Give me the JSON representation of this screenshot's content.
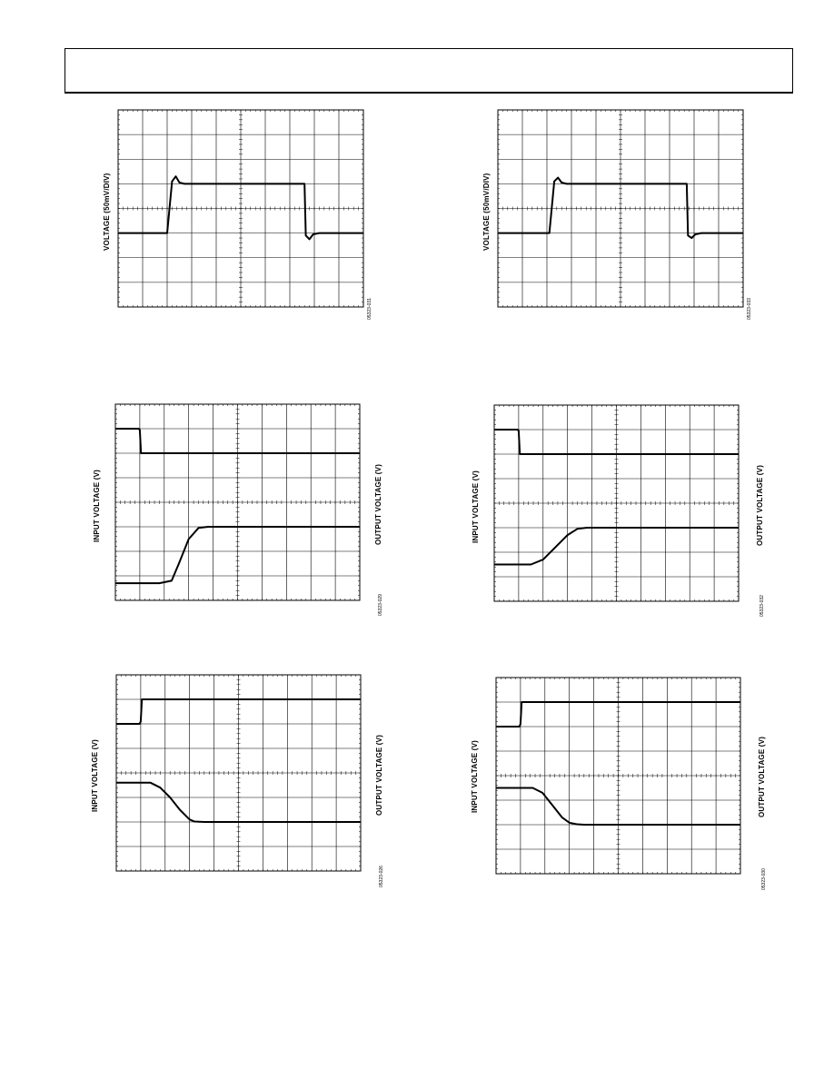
{
  "chart_data": [
    {
      "type": "line",
      "ylabel": "VOLTAGE (50mV/DIV)",
      "code": "05323-031",
      "x": [
        0,
        2.0,
        2.2,
        2.35,
        2.5,
        2.7,
        3.0,
        7.6,
        7.65,
        7.8,
        7.95,
        8.2,
        10
      ],
      "y": [
        -1,
        -1,
        1.1,
        1.3,
        1.05,
        1.0,
        1.0,
        1.0,
        -1.1,
        -1.25,
        -1.05,
        -1.0,
        -1.0
      ],
      "xlim": [
        0,
        10
      ],
      "ylim": [
        -4,
        4
      ],
      "grid": true
    },
    {
      "type": "line",
      "ylabel": "VOLTAGE (50mV/DIV)",
      "code": "05323-033",
      "x": [
        0,
        2.1,
        2.3,
        2.45,
        2.6,
        2.8,
        3.0,
        7.7,
        7.75,
        7.9,
        8.05,
        8.3,
        10
      ],
      "y": [
        -1,
        -1,
        1.1,
        1.25,
        1.05,
        1.0,
        1.0,
        1.0,
        -1.1,
        -1.2,
        -1.05,
        -1.0,
        -1.0
      ],
      "xlim": [
        0,
        10
      ],
      "ylim": [
        -4,
        4
      ],
      "grid": true
    },
    {
      "type": "line",
      "ylabel": "INPUT VOLTAGE (V)",
      "y2label": "OUTPUT VOLTAGE (V)",
      "code": "05323-029",
      "series": [
        {
          "x": [
            0,
            0.95,
            1.0,
            1.05,
            10
          ],
          "y": [
            7.0,
            7.0,
            6.95,
            6.0,
            6.0
          ]
        },
        {
          "x": [
            0,
            1.8,
            2.3,
            2.6,
            3.0,
            3.4,
            3.8,
            4.2,
            10
          ],
          "y": [
            0.7,
            0.7,
            0.8,
            1.5,
            2.5,
            2.95,
            3.0,
            3.0,
            3.0
          ]
        }
      ],
      "xlim": [
        0,
        10
      ],
      "ylim": [
        0,
        8
      ],
      "grid": true
    },
    {
      "type": "line",
      "ylabel": "INPUT VOLTAGE (V)",
      "y2label": "OUTPUT VOLTAGE (V)",
      "code": "05323-032",
      "series": [
        {
          "x": [
            0,
            0.95,
            1.0,
            1.05,
            10
          ],
          "y": [
            7.0,
            7.0,
            6.95,
            6.0,
            6.0
          ]
        },
        {
          "x": [
            0,
            1.5,
            2.0,
            2.6,
            3.0,
            3.4,
            3.8,
            4.4,
            10
          ],
          "y": [
            1.5,
            1.5,
            1.7,
            2.3,
            2.7,
            2.95,
            3.0,
            3.0,
            3.0
          ]
        }
      ],
      "xlim": [
        0,
        10
      ],
      "ylim": [
        0,
        8
      ],
      "grid": true
    },
    {
      "type": "line",
      "ylabel": "INPUT VOLTAGE (V)",
      "y2label": "OUTPUT VOLTAGE (V)",
      "code": "05323-026",
      "series": [
        {
          "x": [
            0,
            0.95,
            1.0,
            1.05,
            10
          ],
          "y": [
            6.0,
            6.0,
            6.1,
            7.0,
            7.0
          ]
        },
        {
          "x": [
            0,
            1.4,
            1.8,
            2.2,
            2.6,
            3.0,
            3.2,
            3.6,
            10
          ],
          "y": [
            3.6,
            3.6,
            3.4,
            3.0,
            2.5,
            2.1,
            2.02,
            2.0,
            2.0
          ]
        }
      ],
      "xlim": [
        0,
        10
      ],
      "ylim": [
        0,
        8
      ],
      "grid": true
    },
    {
      "type": "line",
      "ylabel": "INPUT VOLTAGE (V)",
      "y2label": "OUTPUT VOLTAGE (V)",
      "code": "05323-030",
      "series": [
        {
          "x": [
            0,
            0.95,
            1.0,
            1.05,
            10
          ],
          "y": [
            6.0,
            6.0,
            6.1,
            7.0,
            7.0
          ]
        },
        {
          "x": [
            0,
            1.5,
            1.9,
            2.3,
            2.7,
            3.0,
            3.3,
            3.6,
            10
          ],
          "y": [
            3.5,
            3.5,
            3.3,
            2.8,
            2.3,
            2.08,
            2.02,
            2.0,
            2.0
          ]
        }
      ],
      "xlim": [
        0,
        10
      ],
      "ylim": [
        0,
        8
      ],
      "grid": true
    }
  ]
}
